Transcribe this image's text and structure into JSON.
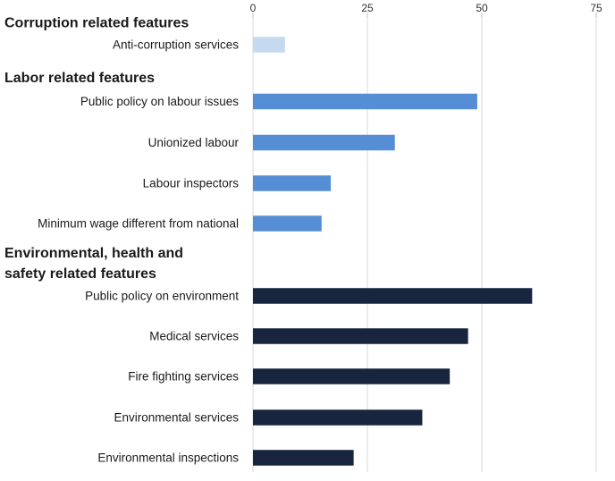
{
  "chart_data": {
    "type": "bar",
    "orientation": "horizontal",
    "title": "",
    "xlabel": "",
    "ylabel": "",
    "xlim": [
      0,
      75
    ],
    "x_ticks": [
      0,
      25,
      50,
      75
    ],
    "x_axis_position": "top",
    "grid": true,
    "legend": "none",
    "groups": [
      {
        "label_lines": [
          "Corruption related features"
        ],
        "color": "#c5d9f1",
        "items": [
          {
            "category": "Anti-corruption services",
            "value": 7
          }
        ]
      },
      {
        "label_lines": [
          "Labor related features"
        ],
        "color": "#558ed5",
        "items": [
          {
            "category": "Public policy on labour issues",
            "value": 49
          },
          {
            "category": "Unionized labour",
            "value": 31
          },
          {
            "category": "Labour inspectors",
            "value": 17
          },
          {
            "category": "Minimum wage different from national",
            "value": 15
          }
        ]
      },
      {
        "label_lines": [
          "Environmental, health and",
          "safety  related features"
        ],
        "color": "#17253f",
        "items": [
          {
            "category": "Public policy on environment",
            "value": 61
          },
          {
            "category": "Medical services",
            "value": 47
          },
          {
            "category": "Fire fighting services",
            "value": 43
          },
          {
            "category": "Environmental services",
            "value": 37
          },
          {
            "category": "Environmental inspections",
            "value": 22
          }
        ]
      }
    ]
  }
}
